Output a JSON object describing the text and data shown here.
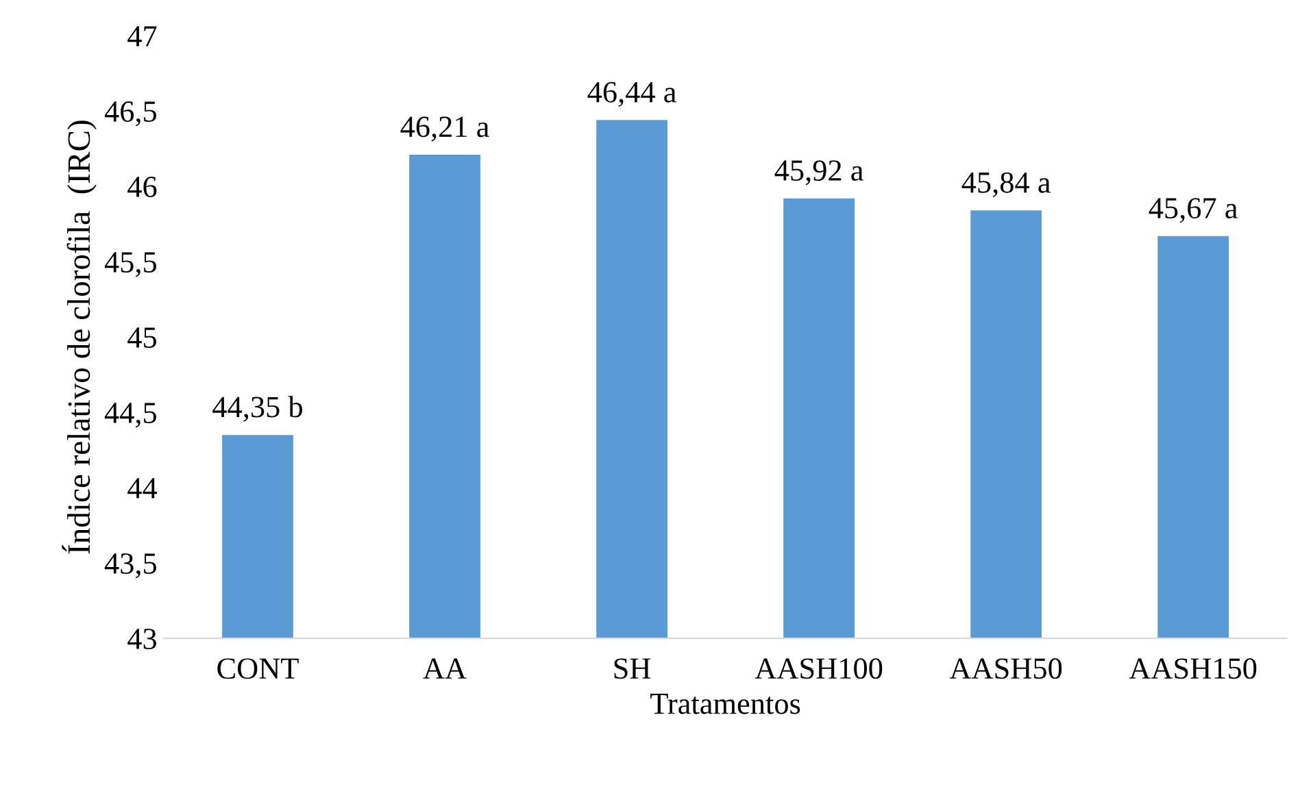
{
  "chart_data": {
    "type": "bar",
    "xlabel": "Tratamentos",
    "ylabel": "Índice relativo de clorofila  (IRC)",
    "categories": [
      "CONT",
      "AA",
      "SH",
      "AASH100",
      "AASH50",
      "AASH150"
    ],
    "values": [
      44.35,
      46.21,
      46.44,
      45.92,
      45.84,
      45.67
    ],
    "value_labels": [
      "44,35 b",
      "46,21 a",
      "46,44 a",
      "45,92 a",
      "45,84 a",
      "45,67 a"
    ],
    "color": "#5b9bd5",
    "grid": false,
    "legend": false,
    "ylim": [
      43,
      47
    ],
    "yticks": [
      43,
      {
        "value": 43.5,
        "label": "43,5"
      },
      44,
      {
        "value": 44.5,
        "label": "44,5"
      },
      45,
      {
        "value": 45.5,
        "label": "45,5"
      },
      46,
      {
        "value": 46.5,
        "label": "46,5"
      },
      47
    ]
  }
}
